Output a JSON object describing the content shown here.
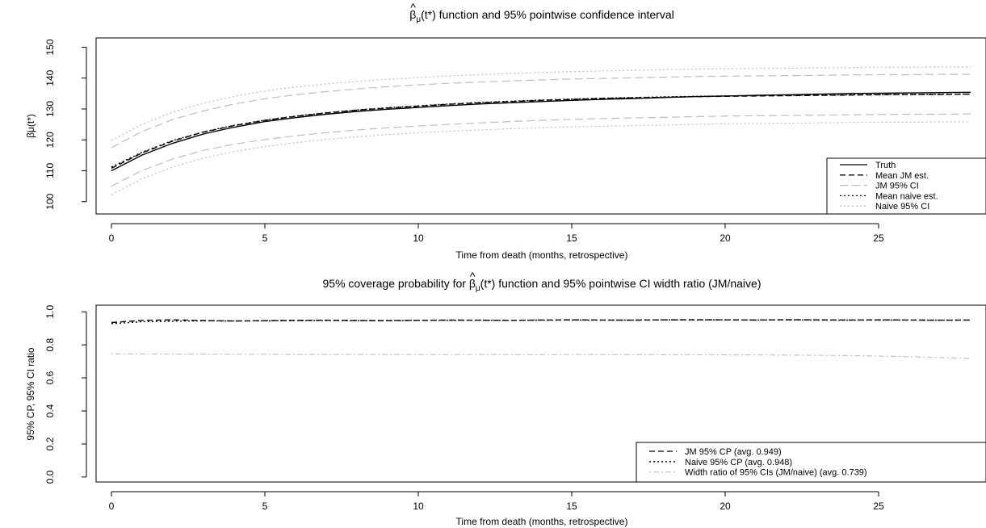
{
  "chart_data": [
    {
      "type": "line",
      "title_parts": {
        "beta": "β",
        "hat": "^",
        "sub": "μ",
        "rest": "(t*) function and 95% pointwise confidence interval"
      },
      "xlabel": "Time from death (months, retrospective)",
      "ylabel": "β̈μ(t*)",
      "xlim": [
        -0.5,
        28.5
      ],
      "ylim": [
        96,
        153
      ],
      "xticks": [
        0,
        5,
        10,
        15,
        20,
        25
      ],
      "xtick_labels": [
        "0",
        "5",
        "10",
        "15",
        "20",
        "25"
      ],
      "yticks": [
        100,
        110,
        120,
        130,
        140,
        150
      ],
      "ytick_labels": [
        "100",
        "110",
        "120",
        "130",
        "140",
        "150"
      ],
      "grid": false,
      "legend_position": "bottom-right",
      "x": [
        0,
        1,
        2,
        3,
        4,
        5,
        6,
        7,
        8,
        9,
        10,
        11,
        12,
        13,
        14,
        15,
        16,
        17,
        18,
        19,
        20,
        21,
        22,
        23,
        24,
        25,
        26,
        27,
        28
      ],
      "series": [
        {
          "name": "Truth",
          "style": "solid",
          "color": "#000000",
          "values": [
            110.0,
            115.1,
            118.9,
            121.9,
            124.1,
            125.9,
            127.2,
            128.3,
            129.2,
            129.9,
            130.5,
            131.1,
            131.6,
            132.0,
            132.4,
            132.8,
            133.1,
            133.4,
            133.7,
            134.0,
            134.2,
            134.4,
            134.6,
            134.8,
            135.0,
            135.1,
            135.2,
            135.3,
            135.4
          ]
        },
        {
          "name": "Mean JM est.",
          "style": "dashed",
          "color": "#000000",
          "values": [
            110.8,
            115.8,
            119.6,
            122.5,
            124.6,
            126.3,
            127.6,
            128.7,
            129.6,
            130.3,
            130.9,
            131.5,
            132.0,
            132.4,
            132.8,
            133.1,
            133.4,
            133.6,
            133.8,
            134.0,
            134.1,
            134.2,
            134.3,
            134.4,
            134.5,
            134.6,
            134.7,
            134.7,
            134.8
          ]
        },
        {
          "name": "JM 95% CI",
          "style": "longdash",
          "color": "#bdbdbd",
          "values": [
            105.0,
            110.1,
            113.8,
            116.6,
            118.6,
            120.1,
            121.3,
            122.3,
            123.2,
            123.9,
            124.5,
            125.0,
            125.5,
            125.9,
            126.3,
            126.6,
            126.9,
            127.1,
            127.3,
            127.5,
            127.7,
            127.8,
            127.9,
            128.0,
            128.1,
            128.2,
            128.3,
            128.3,
            128.4
          ]
        },
        {
          "name": "JM 95% CI upper",
          "style": "longdash",
          "color": "#bdbdbd",
          "values": [
            117.5,
            122.7,
            126.6,
            129.4,
            131.6,
            133.3,
            134.6,
            135.6,
            136.5,
            137.2,
            137.8,
            138.3,
            138.7,
            139.1,
            139.4,
            139.7,
            139.9,
            140.1,
            140.3,
            140.5,
            140.6,
            140.7,
            140.8,
            140.9,
            141.0,
            141.1,
            141.1,
            141.2,
            141.2
          ]
        },
        {
          "name": "Mean naive est.",
          "style": "dotted",
          "color": "#000000",
          "values": [
            111.2,
            116.0,
            119.8,
            122.6,
            124.7,
            126.4,
            127.7,
            128.8,
            129.7,
            130.4,
            131.0,
            131.6,
            132.1,
            132.5,
            132.9,
            133.2,
            133.5,
            133.7,
            133.9,
            134.1,
            134.2,
            134.3,
            134.4,
            134.5,
            134.6,
            134.7,
            134.7,
            134.8,
            134.8
          ]
        },
        {
          "name": "Naive 95% CI",
          "style": "dotted",
          "color": "#bdbdbd",
          "values": [
            102.3,
            107.4,
            111.2,
            114.1,
            116.2,
            117.8,
            119.1,
            120.1,
            121.0,
            121.7,
            122.3,
            122.8,
            123.2,
            123.6,
            123.9,
            124.2,
            124.4,
            124.6,
            124.8,
            125.0,
            125.2,
            125.3,
            125.4,
            125.5,
            125.6,
            125.7,
            125.7,
            125.8,
            125.8
          ]
        },
        {
          "name": "Naive 95% CI upper",
          "style": "dotted",
          "color": "#bdbdbd",
          "values": [
            119.8,
            125.0,
            129.0,
            131.9,
            134.1,
            135.8,
            137.1,
            138.1,
            138.9,
            139.6,
            140.2,
            140.7,
            141.1,
            141.5,
            141.8,
            142.1,
            142.3,
            142.5,
            142.7,
            142.9,
            143.0,
            143.1,
            143.2,
            143.3,
            143.4,
            143.5,
            143.5,
            143.6,
            143.6
          ]
        }
      ],
      "legend": [
        {
          "label": "Truth",
          "style": "solid",
          "color": "#000000"
        },
        {
          "label": "Mean JM est.",
          "style": "dashed",
          "color": "#000000"
        },
        {
          "label": "JM 95% CI",
          "style": "longdash",
          "color": "#bdbdbd"
        },
        {
          "label": "Mean naive est.",
          "style": "dotted",
          "color": "#000000"
        },
        {
          "label": "Naive 95% CI",
          "style": "dotted",
          "color": "#bdbdbd"
        }
      ]
    },
    {
      "type": "line",
      "title_parts": {
        "lead": "95% coverage probability for ",
        "beta": "β",
        "hat": "^",
        "sub": "μ",
        "rest": "(t*) function and 95% pointwise CI width ratio (JM/naive)"
      },
      "xlabel": "Time from death (months, retrospective)",
      "ylabel": "95% CP, 95% CI ratio",
      "xlim": [
        -0.5,
        28.5
      ],
      "ylim": [
        -0.03,
        1.04
      ],
      "xticks": [
        0,
        5,
        10,
        15,
        20,
        25
      ],
      "xtick_labels": [
        "0",
        "5",
        "10",
        "15",
        "20",
        "25"
      ],
      "yticks": [
        0.0,
        0.2,
        0.4,
        0.6,
        0.8,
        1.0
      ],
      "ytick_labels": [
        "0.0",
        "0.2",
        "0.4",
        "0.6",
        "0.8",
        "1.0"
      ],
      "grid": false,
      "legend_position": "bottom-right",
      "x": [
        0,
        1,
        2,
        3,
        4,
        5,
        6,
        7,
        8,
        9,
        10,
        11,
        12,
        13,
        14,
        15,
        16,
        17,
        18,
        19,
        20,
        21,
        22,
        23,
        24,
        25,
        26,
        27,
        28
      ],
      "series": [
        {
          "name": "JM 95% CP (avg. 0.949)",
          "style": "dashed",
          "color": "#000000",
          "values": [
            0.935,
            0.948,
            0.951,
            0.947,
            0.944,
            0.946,
            0.948,
            0.949,
            0.947,
            0.946,
            0.948,
            0.95,
            0.949,
            0.948,
            0.95,
            0.951,
            0.95,
            0.949,
            0.951,
            0.952,
            0.951,
            0.95,
            0.952,
            0.951,
            0.95,
            0.951,
            0.95,
            0.949,
            0.95
          ]
        },
        {
          "name": "Naive 95% CP (avg. 0.948)",
          "style": "dotted",
          "color": "#000000",
          "values": [
            0.928,
            0.94,
            0.943,
            0.945,
            0.944,
            0.945,
            0.946,
            0.947,
            0.946,
            0.947,
            0.948,
            0.948,
            0.949,
            0.948,
            0.949,
            0.95,
            0.949,
            0.95,
            0.951,
            0.95,
            0.951,
            0.95,
            0.951,
            0.95,
            0.949,
            0.95,
            0.95,
            0.949,
            0.95
          ]
        },
        {
          "name": "Width ratio of 95% CIs (JM/naive) (avg. 0.739)",
          "style": "dotdash",
          "color": "#c4c4c4",
          "values": [
            0.745,
            0.745,
            0.744,
            0.744,
            0.743,
            0.743,
            0.742,
            0.742,
            0.742,
            0.741,
            0.741,
            0.741,
            0.741,
            0.741,
            0.741,
            0.741,
            0.741,
            0.74,
            0.74,
            0.74,
            0.739,
            0.739,
            0.738,
            0.737,
            0.735,
            0.732,
            0.728,
            0.723,
            0.718
          ]
        }
      ],
      "legend": [
        {
          "label": "JM 95% CP (avg. 0.949)",
          "style": "dashed",
          "color": "#000000"
        },
        {
          "label": "Naive 95% CP (avg. 0.948)",
          "style": "dotted",
          "color": "#000000"
        },
        {
          "label": "Width ratio of 95% CIs (JM/naive) (avg. 0.739)",
          "style": "dotdash",
          "color": "#c4c4c4"
        }
      ]
    }
  ]
}
